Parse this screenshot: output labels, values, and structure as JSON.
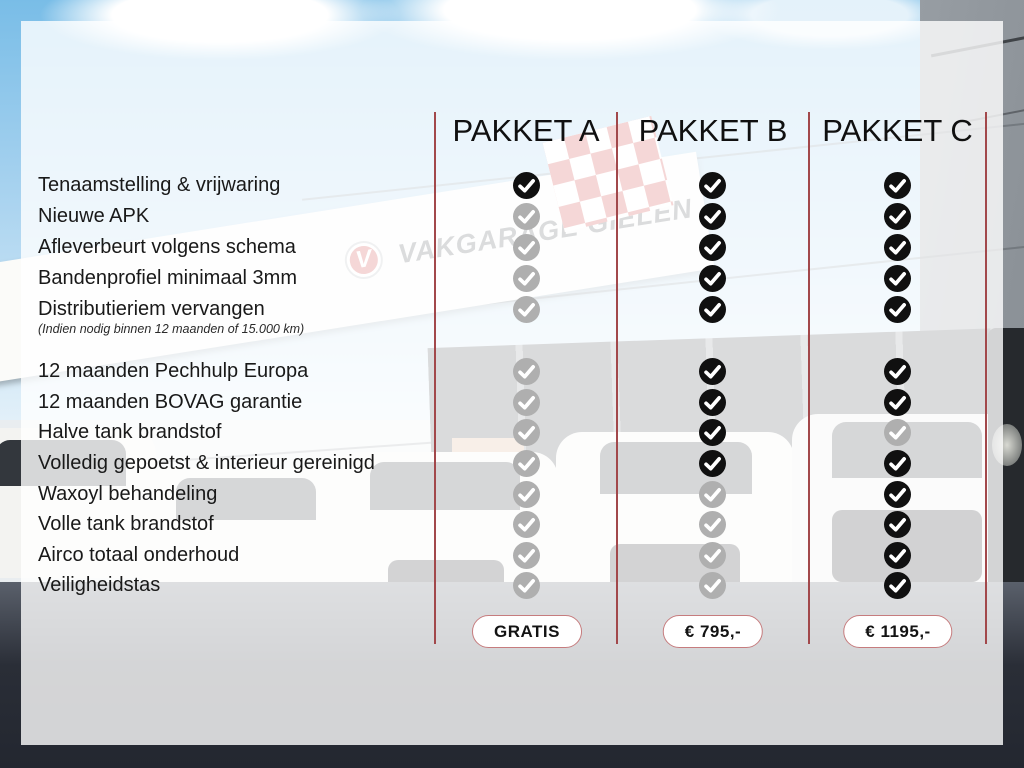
{
  "table": {
    "packages": [
      {
        "name": "PAKKET A",
        "price": "GRATIS"
      },
      {
        "name": "PAKKET B",
        "price": "€ 795,-"
      },
      {
        "name": "PAKKET C",
        "price": "€ 1195,-"
      }
    ],
    "features": [
      {
        "label": "Tenaamstelling & vrijwaring",
        "included": [
          true,
          true,
          true
        ]
      },
      {
        "label": "Nieuwe APK",
        "included": [
          false,
          true,
          true
        ]
      },
      {
        "label": "Afleverbeurt volgens schema",
        "included": [
          false,
          true,
          true
        ]
      },
      {
        "label": "Bandenprofiel minimaal 3mm",
        "included": [
          false,
          true,
          true
        ]
      },
      {
        "label": "Distributieriem vervangen",
        "included": [
          false,
          true,
          true
        ],
        "note": "(Indien nodig binnen 12 maanden of 15.000 km)"
      },
      {
        "label": "12 maanden Pechhulp Europa",
        "included": [
          false,
          true,
          true
        ]
      },
      {
        "label": "12 maanden BOVAG garantie",
        "included": [
          false,
          true,
          true
        ]
      },
      {
        "label": "Halve tank brandstof",
        "included": [
          false,
          true,
          false
        ]
      },
      {
        "label": "Volledig gepoetst & interieur gereinigd",
        "included": [
          false,
          true,
          true
        ]
      },
      {
        "label": "Waxoyl behandeling",
        "included": [
          false,
          false,
          true
        ]
      },
      {
        "label": "Volle tank brandstof",
        "included": [
          false,
          false,
          true
        ]
      },
      {
        "label": "Airco totaal onderhoud",
        "included": [
          false,
          false,
          true
        ]
      },
      {
        "label": "Veiligheidstas",
        "included": [
          false,
          false,
          true
        ]
      }
    ]
  },
  "background": {
    "sign_text": "VAKGARAGE GIELEN",
    "logo_letter": "V"
  },
  "icons": {
    "included": "check-circle-icon",
    "not_included": "check-circle-muted-icon"
  },
  "colors": {
    "check_on": "#101010",
    "check_off": "#afafaf",
    "divider": "#a2484b",
    "pill_border": "#c67c7e",
    "accent_red": "#cc3b37",
    "text": "#161616"
  }
}
